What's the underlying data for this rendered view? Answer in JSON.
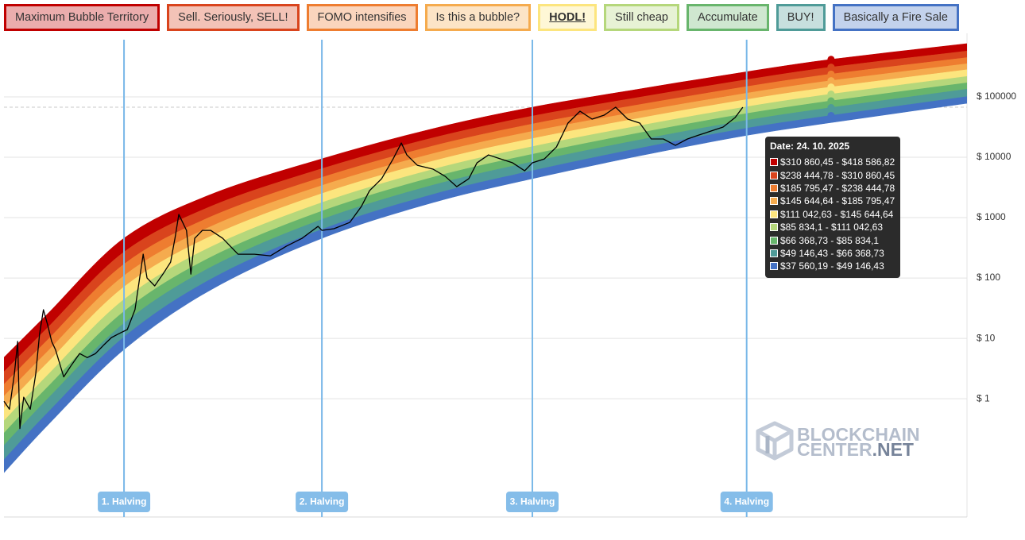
{
  "chart_data": {
    "type": "rainbow",
    "log_scale": true,
    "grid": true,
    "xlim": [
      2010.72,
      2028.29
    ],
    "ylim": [
      0.011,
      1000000
    ],
    "yticks": [
      {
        "value": 1,
        "label": "$ 1"
      },
      {
        "value": 10,
        "label": "$ 10"
      },
      {
        "value": 100,
        "label": "$ 100"
      },
      {
        "value": 1000,
        "label": "$ 1000"
      },
      {
        "value": 10000,
        "label": "$ 10000"
      },
      {
        "value": 100000,
        "label": "$ 100000"
      }
    ],
    "legend_highlight": 4,
    "x": [
      2010.72,
      2011.52,
      2012.91,
      2014.49,
      2016.52,
      2018.55,
      2020.36,
      2022.32,
      2024.3,
      2025.81,
      2028.29
    ],
    "band_top": [
      4.83,
      25.6,
      455,
      2410,
      9420,
      29800,
      67500,
      135500,
      263600,
      418586.82,
      762100
    ],
    "series": [
      {
        "name": "Maximum Bubble Territory",
        "color": "#c00000",
        "values": [
          2.8,
          15.1,
          269,
          1530,
          6470,
          21000,
          48100,
          98800,
          195000,
          310860.45,
          575400
        ]
      },
      {
        "name": "Sell. Seriously, SELL!",
        "color": "#d9441d",
        "values": [
          1.73,
          9.48,
          169,
          1030,
          4630,
          15400,
          35600,
          74600,
          149600,
          238444.78,
          447700
        ]
      },
      {
        "name": "FOMO intensifies",
        "color": "#ee7d30",
        "values": [
          1.1,
          6.12,
          109,
          708,
          3400,
          11500,
          26900,
          57400,
          116400,
          185795.47,
          354000
        ]
      },
      {
        "name": "Is this a bubble?",
        "color": "#f5ab4e",
        "values": [
          0.705,
          3.99,
          71.0,
          490,
          2500,
          8670,
          20400,
          44500,
          91200,
          145644.64,
          281800
        ]
      },
      {
        "name": "HODL!",
        "color": "#fce57e",
        "values": [
          0.43,
          2.47,
          44.0,
          325,
          1770,
          6310,
          15000,
          33300,
          69300,
          111042.63,
          217800
        ]
      },
      {
        "name": "Still cheap",
        "color": "#b5d77b",
        "values": [
          0.269,
          1.57,
          27.9,
          220,
          1280,
          4670,
          11200,
          25400,
          53500,
          85834.1,
          171000
        ]
      },
      {
        "name": "Accumulate",
        "color": "#68b56c",
        "values": [
          0.168,
          1.0,
          17.8,
          150,
          931,
          3460,
          8390,
          19400,
          41400,
          66368.73,
          134300
        ]
      },
      {
        "name": "BUY!",
        "color": "#4f9b98",
        "values": [
          0.0973,
          0.589,
          10.5,
          95.1,
          637,
          2430,
          5970,
          14100,
          30500,
          49146.43,
          101200
        ]
      },
      {
        "name": "Basically a Fire Sale",
        "color": "#4472c4",
        "values": [
          0.0597,
          0.368,
          6.55,
          63.5,
          455,
          1780,
          4420,
          10600,
          23300,
          37560.19,
          78500
        ]
      }
    ],
    "lines": [
      {
        "color": "#000000",
        "x": [
          2010.72,
          2010.82,
          2010.91,
          2010.97,
          2011.01,
          2011.08,
          2011.2,
          2011.3,
          2011.37,
          2011.44,
          2011.52,
          2011.59,
          2011.66,
          2011.81,
          2011.95,
          2012.1,
          2012.24,
          2012.39,
          2012.53,
          2012.68,
          2012.82,
          2012.97,
          2013.11,
          2013.26,
          2013.33,
          2013.47,
          2013.62,
          2013.76,
          2013.84,
          2013.91,
          2013.98,
          2014.05,
          2014.13,
          2014.2,
          2014.34,
          2014.49,
          2014.71,
          2014.99,
          2015.29,
          2015.58,
          2015.87,
          2016.16,
          2016.45,
          2016.52,
          2016.74,
          2017.03,
          2017.24,
          2017.39,
          2017.61,
          2017.82,
          2017.97,
          2018.07,
          2018.26,
          2018.55,
          2018.77,
          2018.98,
          2019.2,
          2019.35,
          2019.56,
          2019.78,
          2020.0,
          2020.22,
          2020.36,
          2020.58,
          2020.8,
          2021.01,
          2021.23,
          2021.45,
          2021.67,
          2021.88,
          2022.1,
          2022.32,
          2022.53,
          2022.75,
          2022.97,
          2023.19,
          2023.4,
          2023.62,
          2023.84,
          2024.06,
          2024.2
        ],
        "values": [
          0.91,
          0.67,
          2.6,
          8.9,
          0.32,
          1.06,
          0.67,
          2.6,
          12,
          29.8,
          16.3,
          8.9,
          6.5,
          2.3,
          3.6,
          5.6,
          4.8,
          5.6,
          7.6,
          10.3,
          12,
          14,
          29.8,
          248,
          100,
          74,
          116,
          183,
          455,
          1130,
          834,
          615,
          116,
          455,
          615,
          615,
          455,
          248,
          248,
          233,
          336,
          455,
          716,
          615,
          655,
          834,
          1528,
          2800,
          4415,
          9400,
          17260,
          10940,
          7380,
          6350,
          4830,
          3260,
          4415,
          8090,
          10940,
          9400,
          8090,
          5970,
          8090,
          9400,
          14830,
          36800,
          57960,
          42850,
          49800,
          67450,
          42850,
          36800,
          20090,
          20090,
          15740,
          20090,
          23350,
          27160,
          31620,
          45500,
          67450
        ]
      }
    ],
    "halvings": [
      {
        "x": 2012.91,
        "label": "1. Halving"
      },
      {
        "x": 2016.52,
        "label": "2. Halving"
      },
      {
        "x": 2020.36,
        "label": "3. Halving"
      },
      {
        "x": 2024.27,
        "label": "4. Halving"
      }
    ],
    "tooltip": {
      "title": "Date: 24. 10. 2025",
      "rows": [
        "$310 860,45 - $418 586,82",
        "$238 444,78 - $310 860,45",
        "$185 795,47 - $238 444,78",
        "$145 644,64 - $185 795,47",
        "$111 042,63 - $145 644,64",
        "$85 834,1 - $111 042,63",
        "$66 368,73 - $85 834,1",
        "$49 146,43 - $66 368,73",
        "$37 560,19 - $49 146,43"
      ]
    },
    "watermark": [
      "BLOCKCHAIN",
      "CENTER",
      ".NET"
    ]
  }
}
